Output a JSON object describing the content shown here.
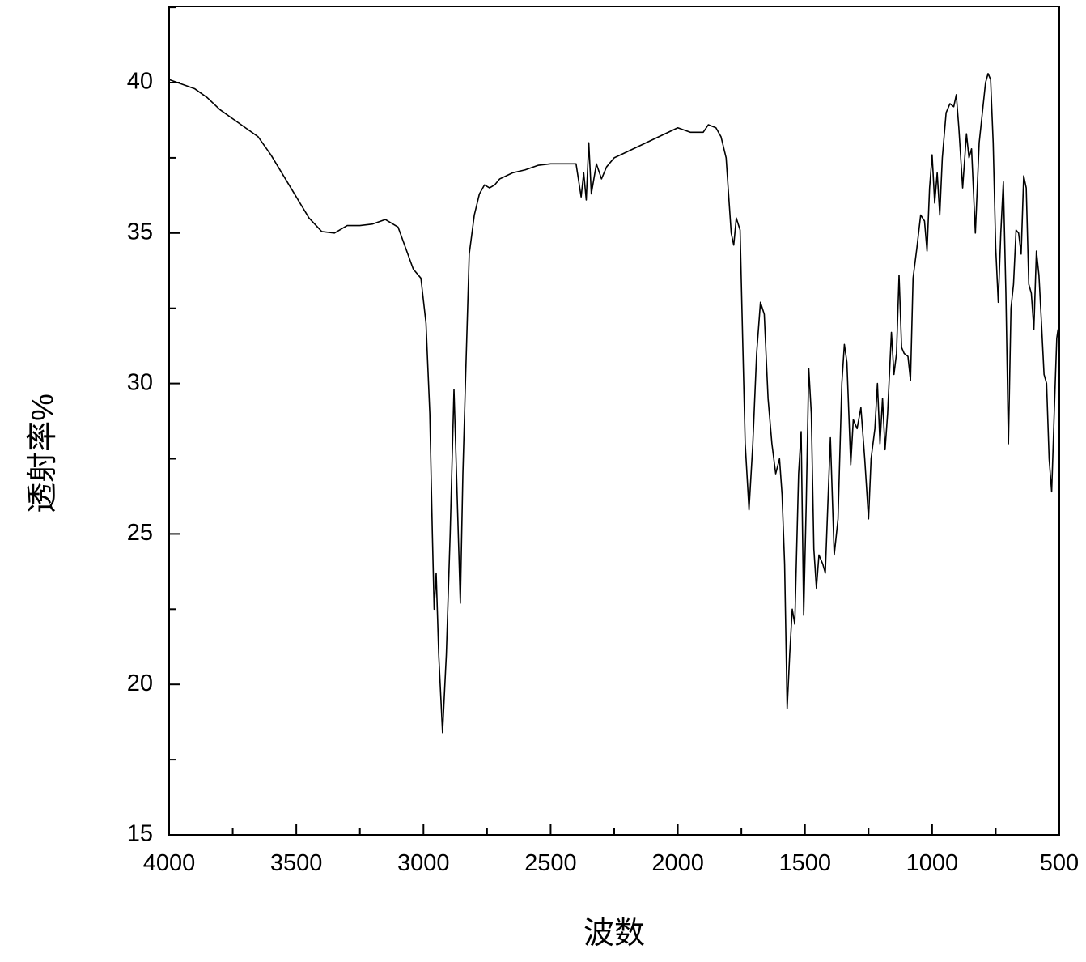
{
  "chart_data": {
    "type": "line",
    "xlabel": "波数",
    "ylabel": "透射率%",
    "xlim": [
      4000,
      500
    ],
    "ylim": [
      15,
      42.53
    ],
    "xticks": [
      4000,
      3500,
      3000,
      2500,
      2000,
      1500,
      1000,
      500
    ],
    "xminorticks": [
      3750,
      3250,
      2750,
      2250,
      1750,
      1250,
      750
    ],
    "yticks": [
      15,
      20,
      25,
      30,
      35,
      40
    ],
    "yminorticks": [
      17.5,
      22.5,
      27.5,
      32.5,
      37.5,
      42.5
    ],
    "series": [
      {
        "color": "#000000",
        "x": [
          4000,
          3900,
          3850,
          3800,
          3750,
          3700,
          3650,
          3600,
          3550,
          3500,
          3450,
          3400,
          3350,
          3300,
          3250,
          3200,
          3150,
          3100,
          3070,
          3040,
          3010,
          2990,
          2975,
          2965,
          2958,
          2950,
          2940,
          2925,
          2910,
          2895,
          2880,
          2870,
          2855,
          2845,
          2835,
          2820,
          2800,
          2780,
          2760,
          2740,
          2720,
          2700,
          2650,
          2600,
          2550,
          2500,
          2400,
          2380,
          2370,
          2360,
          2350,
          2340,
          2320,
          2300,
          2280,
          2250,
          2200,
          2100,
          2000,
          1950,
          1900,
          1880,
          1850,
          1830,
          1810,
          1790,
          1780,
          1770,
          1755,
          1745,
          1735,
          1720,
          1705,
          1690,
          1675,
          1660,
          1645,
          1630,
          1615,
          1600,
          1590,
          1580,
          1570,
          1560,
          1550,
          1540,
          1525,
          1515,
          1505,
          1495,
          1485,
          1475,
          1465,
          1455,
          1445,
          1430,
          1420,
          1410,
          1400,
          1385,
          1370,
          1355,
          1345,
          1335,
          1320,
          1310,
          1295,
          1280,
          1265,
          1250,
          1240,
          1225,
          1215,
          1205,
          1195,
          1185,
          1175,
          1160,
          1150,
          1140,
          1130,
          1120,
          1110,
          1095,
          1085,
          1075,
          1060,
          1045,
          1030,
          1020,
          1010,
          1000,
          990,
          980,
          970,
          960,
          945,
          930,
          915,
          905,
          895,
          880,
          865,
          855,
          845,
          830,
          815,
          800,
          790,
          780,
          770,
          760,
          750,
          740,
          730,
          720,
          710,
          700,
          690,
          680,
          670,
          660,
          650,
          640,
          630,
          620,
          610,
          600,
          590,
          580,
          570,
          560,
          550,
          540,
          530,
          520,
          510,
          505
        ],
        "values": [
          40.1,
          39.8,
          39.5,
          39.1,
          38.8,
          38.5,
          38.2,
          37.6,
          36.9,
          36.2,
          35.5,
          35.05,
          35.0,
          35.25,
          35.25,
          35.3,
          35.45,
          35.2,
          34.5,
          33.8,
          33.5,
          32,
          29,
          25,
          22.5,
          23.7,
          21,
          18.4,
          21,
          25,
          29.8,
          27,
          22.7,
          27,
          30,
          34.3,
          35.6,
          36.3,
          36.6,
          36.5,
          36.6,
          36.8,
          37,
          37.1,
          37.25,
          37.3,
          37.3,
          36.2,
          37,
          36.1,
          38,
          36.3,
          37.3,
          36.8,
          37.2,
          37.5,
          37.7,
          38.1,
          38.5,
          38.35,
          38.35,
          38.6,
          38.5,
          38.2,
          37.5,
          35,
          34.6,
          35.5,
          35.1,
          31.5,
          28,
          25.8,
          28,
          31,
          32.7,
          32.3,
          29.5,
          28,
          27,
          27.5,
          26.3,
          24,
          19.2,
          21,
          22.5,
          22,
          27,
          28.4,
          22.3,
          26,
          30.5,
          29,
          24.5,
          23.2,
          24.3,
          24,
          23.7,
          26,
          28.2,
          24.3,
          25.5,
          30,
          31.3,
          30.7,
          27.3,
          28.8,
          28.5,
          29.2,
          27.5,
          25.5,
          27.5,
          28.5,
          30,
          28,
          29.5,
          27.8,
          29,
          31.7,
          30.3,
          31,
          33.6,
          31.2,
          31,
          30.9,
          30.1,
          33.5,
          34.5,
          35.6,
          35.4,
          34.4,
          36.5,
          37.6,
          36,
          37,
          35.6,
          37.5,
          39,
          39.3,
          39.2,
          39.6,
          38.5,
          36.5,
          38.3,
          37.5,
          37.8,
          35,
          38,
          39.2,
          40,
          40.3,
          40.1,
          38,
          34.5,
          32.7,
          35,
          36.7,
          33,
          28,
          32.5,
          33.3,
          35.1,
          35,
          34.3,
          36.9,
          36.5,
          33.3,
          33,
          31.8,
          34.4,
          33.6,
          32,
          30.3,
          30,
          27.5,
          26.4,
          29,
          31.5,
          31.8
        ]
      }
    ]
  }
}
